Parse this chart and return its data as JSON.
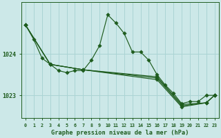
{
  "title": "Graphe pression niveau de la mer (hPa)",
  "bg_color": "#cce8e8",
  "grid_color": "#aad4d4",
  "line_color": "#1e5c1e",
  "xlim": [
    -0.5,
    23.5
  ],
  "ylim": [
    1022.45,
    1025.25
  ],
  "yticks": [
    1023,
    1024
  ],
  "xticks": [
    0,
    1,
    2,
    3,
    4,
    5,
    6,
    7,
    8,
    9,
    10,
    11,
    12,
    13,
    14,
    15,
    16,
    17,
    18,
    19,
    20,
    21,
    22,
    23
  ],
  "main_line": {
    "x": [
      0,
      1,
      2,
      3,
      4,
      5,
      6,
      7,
      8,
      9,
      10,
      11,
      12,
      13,
      14,
      15,
      16,
      17,
      18,
      19,
      20,
      21,
      22,
      23
    ],
    "y": [
      1024.7,
      1024.35,
      1023.9,
      1023.75,
      1023.6,
      1023.55,
      1023.6,
      1023.6,
      1023.85,
      1024.2,
      1024.95,
      1024.75,
      1024.5,
      1024.05,
      1024.05,
      1023.85,
      1023.5,
      1023.25,
      1023.05,
      1022.8,
      1022.85,
      1022.85,
      1023.0,
      1023.0
    ]
  },
  "straight_line1": {
    "x": [
      0,
      3,
      7,
      16,
      19,
      22,
      23
    ],
    "y": [
      1024.7,
      1023.75,
      1023.62,
      1023.45,
      1022.78,
      1022.82,
      1023.0
    ]
  },
  "straight_line2": {
    "x": [
      0,
      3,
      7,
      16,
      19,
      22,
      23
    ],
    "y": [
      1024.7,
      1023.75,
      1023.62,
      1023.42,
      1022.75,
      1022.82,
      1023.0
    ]
  },
  "straight_line3": {
    "x": [
      0,
      3,
      7,
      16,
      19,
      22,
      23
    ],
    "y": [
      1024.7,
      1023.75,
      1023.62,
      1023.38,
      1022.72,
      1022.82,
      1023.0
    ]
  }
}
